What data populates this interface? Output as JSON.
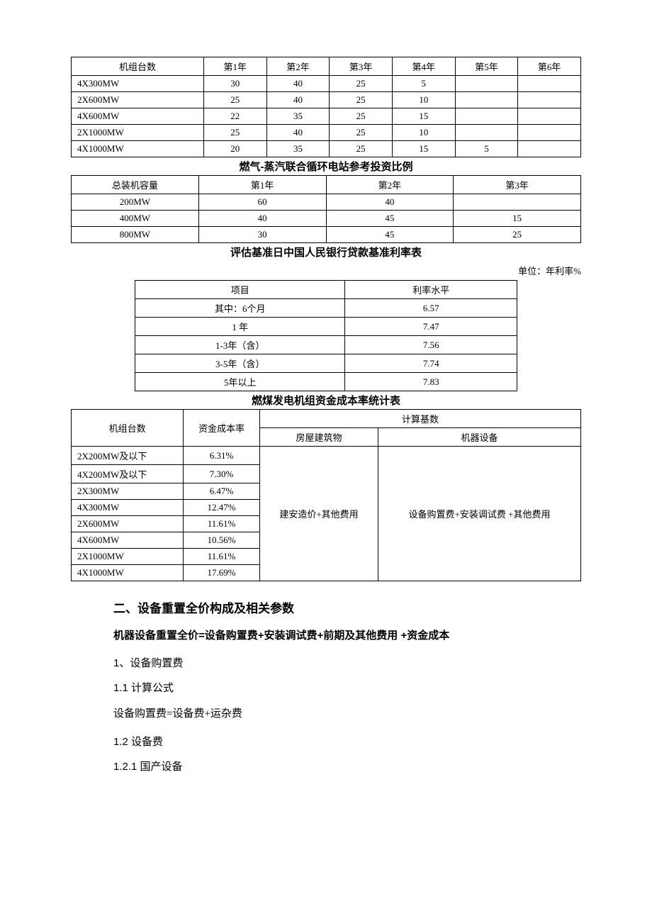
{
  "table1": {
    "columns": [
      "机组台数",
      "第1年",
      "第2年",
      "第3年",
      "第4年",
      "第5年",
      "第6年"
    ],
    "rows": [
      [
        "4X300MW",
        "30",
        "40",
        "25",
        "5",
        "",
        ""
      ],
      [
        "2X600MW",
        "25",
        "40",
        "25",
        "10",
        "",
        ""
      ],
      [
        "4X600MW",
        "22",
        "35",
        "25",
        "15",
        "",
        ""
      ],
      [
        "2X1000MW",
        "25",
        "40",
        "25",
        "10",
        "",
        ""
      ],
      [
        "4X1000MW",
        "20",
        "35",
        "25",
        "15",
        "5",
        ""
      ]
    ]
  },
  "title2": "燃气-蒸汽联合循环电站参考投资比例",
  "table2": {
    "columns": [
      "总装机容量",
      "第1年",
      "第2年",
      "第3年"
    ],
    "rows": [
      [
        "200MW",
        "60",
        "40",
        ""
      ],
      [
        "400MW",
        "40",
        "45",
        "15"
      ],
      [
        "800MW",
        "30",
        "45",
        "25"
      ]
    ]
  },
  "title3": "评估基准日中国人民银行贷款基准利率表",
  "unit3": "单位：年利率%",
  "table3": {
    "columns": [
      "项目",
      "利率水平"
    ],
    "rows": [
      [
        "其中：6个月",
        "6.57"
      ],
      [
        "1 年",
        "7.47"
      ],
      [
        "1-3年（含）",
        "7.56"
      ],
      [
        "3-5年（含）",
        "7.74"
      ],
      [
        "5年以上",
        "7.83"
      ]
    ]
  },
  "title4": "燃煤发电机组资金成本率统计表",
  "table4": {
    "header_row1": [
      "机组台数",
      "资金成本率",
      "计算基数"
    ],
    "header_row2": [
      "房屋建筑物",
      "机器设备"
    ],
    "merged_col1": "建安造价+其他费用",
    "merged_col2": "设备购置费+安装调试费 +其他费用",
    "rows": [
      [
        "2X200MW及以下",
        "6.31%"
      ],
      [
        "4X200MW及以下",
        "7.30%"
      ],
      [
        "2X300MW",
        "6.47%"
      ],
      [
        "4X300MW",
        "12.47%"
      ],
      [
        "2X600MW",
        "11.61%"
      ],
      [
        "4X600MW",
        "10.56%"
      ],
      [
        "2X1000MW",
        "11.61%"
      ],
      [
        "4X1000MW",
        "17.69%"
      ]
    ]
  },
  "text": {
    "section2": "二、设备重置全价构成及相关参数",
    "formula_main": "机器设备重置全价=设备购置费+安装调试费+前期及其他费用 +资金成本",
    "s1": "1、设备购置费",
    "s11": "1.1   计算公式",
    "formula_11": "设备购置费=设备费+运杂费",
    "s12": "1.2   设备费",
    "s121": "1.2.1   国产设备"
  }
}
